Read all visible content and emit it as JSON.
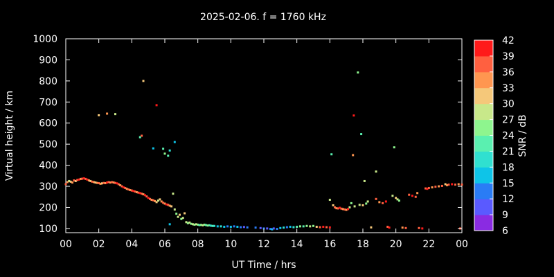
{
  "chart_data": {
    "type": "scatter",
    "title": "2025-02-06. f = 1760 kHz",
    "xlabel": "UT Time / hrs",
    "ylabel": "Virtual height / km",
    "xlim": [
      0,
      24
    ],
    "ylim": [
      80,
      1000
    ],
    "xticks": [
      "00",
      "02",
      "04",
      "06",
      "08",
      "10",
      "12",
      "14",
      "16",
      "18",
      "20",
      "22",
      "00"
    ],
    "yticks": [
      100,
      200,
      300,
      400,
      500,
      600,
      700,
      800,
      900,
      1000
    ],
    "colorbar": {
      "label": "SNR / dB",
      "ticks": [
        6,
        9,
        12,
        15,
        18,
        21,
        24,
        27,
        30,
        33,
        36,
        39,
        42
      ],
      "colors": [
        "#8a2be2",
        "#5a5aff",
        "#2a7cf5",
        "#0ec4e8",
        "#30e0d0",
        "#5af0b0",
        "#8ef58e",
        "#c8e88a",
        "#f5c87a",
        "#ff9650",
        "#ff6040",
        "#ff1a1a"
      ]
    },
    "points": [
      [
        0.0,
        310,
        36
      ],
      [
        0.1,
        320,
        33
      ],
      [
        0.2,
        325,
        27
      ],
      [
        0.3,
        322,
        30
      ],
      [
        0.4,
        318,
        33
      ],
      [
        0.5,
        328,
        36
      ],
      [
        0.6,
        325,
        30
      ],
      [
        0.7,
        330,
        36
      ],
      [
        0.8,
        332,
        39
      ],
      [
        0.9,
        335,
        33
      ],
      [
        1.0,
        336,
        36
      ],
      [
        1.1,
        338,
        39
      ],
      [
        1.2,
        335,
        36
      ],
      [
        1.3,
        332,
        39
      ],
      [
        1.4,
        328,
        33
      ],
      [
        1.5,
        325,
        30
      ],
      [
        1.6,
        322,
        36
      ],
      [
        1.7,
        320,
        33
      ],
      [
        1.8,
        318,
        30
      ],
      [
        1.9,
        316,
        33
      ],
      [
        2.0,
        315,
        36
      ],
      [
        2.1,
        312,
        33
      ],
      [
        2.2,
        314,
        30
      ],
      [
        2.3,
        316,
        36
      ],
      [
        2.4,
        315,
        33
      ],
      [
        2.5,
        318,
        39
      ],
      [
        2.6,
        320,
        36
      ],
      [
        2.7,
        318,
        33
      ],
      [
        2.8,
        320,
        36
      ],
      [
        2.9,
        318,
        33
      ],
      [
        3.0,
        316,
        36
      ],
      [
        3.1,
        314,
        39
      ],
      [
        3.2,
        310,
        36
      ],
      [
        3.3,
        305,
        33
      ],
      [
        3.4,
        300,
        36
      ],
      [
        3.5,
        295,
        39
      ],
      [
        3.6,
        292,
        36
      ],
      [
        3.7,
        288,
        33
      ],
      [
        3.8,
        285,
        36
      ],
      [
        3.9,
        282,
        33
      ],
      [
        4.0,
        280,
        36
      ],
      [
        4.1,
        278,
        39
      ],
      [
        4.2,
        275,
        36
      ],
      [
        4.3,
        272,
        33
      ],
      [
        4.4,
        270,
        36
      ],
      [
        4.5,
        268,
        39
      ],
      [
        4.6,
        265,
        36
      ],
      [
        4.7,
        262,
        33
      ],
      [
        4.8,
        258,
        39
      ],
      [
        4.9,
        252,
        36
      ],
      [
        5.0,
        245,
        39
      ],
      [
        5.1,
        240,
        36
      ],
      [
        5.2,
        236,
        33
      ],
      [
        5.3,
        234,
        36
      ],
      [
        5.4,
        230,
        33
      ],
      [
        5.5,
        225,
        30
      ],
      [
        5.6,
        232,
        27
      ],
      [
        5.7,
        238,
        30
      ],
      [
        5.8,
        228,
        33
      ],
      [
        5.9,
        222,
        36
      ],
      [
        6.0,
        218,
        33
      ],
      [
        6.1,
        214,
        39
      ],
      [
        6.2,
        212,
        36
      ],
      [
        6.3,
        208,
        33
      ],
      [
        6.4,
        205,
        30
      ],
      [
        2.0,
        637,
        30
      ],
      [
        2.5,
        645,
        33
      ],
      [
        3.0,
        643,
        27
      ],
      [
        4.5,
        533,
        21
      ],
      [
        4.6,
        540,
        36
      ],
      [
        4.7,
        800,
        30
      ],
      [
        5.3,
        480,
        15
      ],
      [
        5.5,
        685,
        39
      ],
      [
        5.9,
        478,
        21
      ],
      [
        6.0,
        455,
        24
      ],
      [
        6.2,
        445,
        21
      ],
      [
        6.3,
        470,
        18
      ],
      [
        6.6,
        510,
        15
      ],
      [
        6.5,
        265,
        27
      ],
      [
        6.3,
        120,
        15
      ],
      [
        6.6,
        190,
        27
      ],
      [
        6.7,
        170,
        24
      ],
      [
        6.8,
        155,
        27
      ],
      [
        6.9,
        165,
        30
      ],
      [
        7.0,
        145,
        24
      ],
      [
        7.1,
        150,
        27
      ],
      [
        7.2,
        172,
        30
      ],
      [
        7.3,
        130,
        27
      ],
      [
        7.4,
        125,
        24
      ],
      [
        7.5,
        128,
        27
      ],
      [
        7.6,
        122,
        24
      ],
      [
        7.7,
        120,
        27
      ],
      [
        7.8,
        118,
        24
      ],
      [
        7.9,
        120,
        27
      ],
      [
        8.0,
        118,
        24
      ],
      [
        8.1,
        116,
        21
      ],
      [
        8.2,
        117,
        24
      ],
      [
        8.3,
        115,
        27
      ],
      [
        8.4,
        118,
        24
      ],
      [
        8.5,
        116,
        21
      ],
      [
        8.6,
        114,
        24
      ],
      [
        8.7,
        115,
        21
      ],
      [
        8.8,
        113,
        18
      ],
      [
        8.9,
        112,
        21
      ],
      [
        9.0,
        112,
        18
      ],
      [
        9.2,
        110,
        15
      ],
      [
        9.4,
        110,
        18
      ],
      [
        9.6,
        108,
        15
      ],
      [
        9.8,
        110,
        12
      ],
      [
        10.0,
        108,
        15
      ],
      [
        10.2,
        110,
        12
      ],
      [
        10.4,
        108,
        15
      ],
      [
        10.6,
        106,
        12
      ],
      [
        10.8,
        107,
        9
      ],
      [
        11.0,
        105,
        12
      ],
      [
        11.5,
        104,
        12
      ],
      [
        11.8,
        102,
        9
      ],
      [
        12.0,
        100,
        12
      ],
      [
        12.2,
        100,
        9
      ],
      [
        12.4,
        98,
        12
      ],
      [
        12.5,
        96,
        15
      ],
      [
        12.6,
        100,
        9
      ],
      [
        12.8,
        98,
        12
      ],
      [
        13.0,
        102,
        15
      ],
      [
        13.2,
        104,
        18
      ],
      [
        13.4,
        106,
        12
      ],
      [
        13.6,
        108,
        15
      ],
      [
        13.8,
        106,
        18
      ],
      [
        14.0,
        108,
        21
      ],
      [
        14.2,
        110,
        24
      ],
      [
        14.4,
        110,
        21
      ],
      [
        14.6,
        112,
        24
      ],
      [
        14.8,
        110,
        27
      ],
      [
        15.0,
        112,
        24
      ],
      [
        15.2,
        108,
        30
      ],
      [
        15.4,
        106,
        36
      ],
      [
        15.6,
        108,
        39
      ],
      [
        15.8,
        106,
        36
      ],
      [
        16.0,
        105,
        39
      ],
      [
        16.0,
        236,
        27
      ],
      [
        16.1,
        452,
        21
      ],
      [
        16.2,
        210,
        30
      ],
      [
        16.3,
        200,
        36
      ],
      [
        16.4,
        196,
        33
      ],
      [
        16.5,
        195,
        36
      ],
      [
        16.6,
        198,
        39
      ],
      [
        16.7,
        194,
        36
      ],
      [
        16.8,
        192,
        33
      ],
      [
        16.9,
        190,
        36
      ],
      [
        17.0,
        188,
        33
      ],
      [
        17.1,
        192,
        39
      ],
      [
        17.2,
        200,
        27
      ],
      [
        17.3,
        220,
        24
      ],
      [
        17.4,
        448,
        33
      ],
      [
        17.45,
        636,
        39
      ],
      [
        17.5,
        205,
        27
      ],
      [
        17.7,
        840,
        24
      ],
      [
        17.8,
        212,
        27
      ],
      [
        17.9,
        548,
        21
      ],
      [
        18.0,
        210,
        30
      ],
      [
        18.1,
        325,
        27
      ],
      [
        18.2,
        218,
        24
      ],
      [
        18.3,
        228,
        27
      ],
      [
        18.5,
        105,
        30
      ],
      [
        18.8,
        240,
        36
      ],
      [
        18.8,
        370,
        27
      ],
      [
        19.0,
        225,
        33
      ],
      [
        19.2,
        220,
        36
      ],
      [
        19.4,
        228,
        39
      ],
      [
        19.5,
        108,
        36
      ],
      [
        19.6,
        104,
        39
      ],
      [
        19.9,
        485,
        24
      ],
      [
        19.8,
        255,
        27
      ],
      [
        20.0,
        245,
        30
      ],
      [
        20.1,
        238,
        27
      ],
      [
        20.2,
        232,
        24
      ],
      [
        20.4,
        104,
        33
      ],
      [
        20.6,
        102,
        36
      ],
      [
        20.8,
        260,
        36
      ],
      [
        21.0,
        255,
        39
      ],
      [
        21.2,
        250,
        36
      ],
      [
        21.3,
        268,
        33
      ],
      [
        21.4,
        102,
        36
      ],
      [
        21.6,
        100,
        39
      ],
      [
        21.8,
        290,
        36
      ],
      [
        21.9,
        288,
        39
      ],
      [
        22.0,
        292,
        36
      ],
      [
        22.2,
        295,
        33
      ],
      [
        22.4,
        298,
        36
      ],
      [
        22.6,
        300,
        33
      ],
      [
        22.8,
        302,
        36
      ],
      [
        23.0,
        310,
        30
      ],
      [
        23.1,
        305,
        33
      ],
      [
        23.2,
        308,
        36
      ],
      [
        23.4,
        310,
        39
      ],
      [
        23.6,
        308,
        36
      ],
      [
        23.8,
        310,
        33
      ],
      [
        24.0,
        308,
        36
      ],
      [
        23.9,
        100,
        36
      ]
    ]
  }
}
